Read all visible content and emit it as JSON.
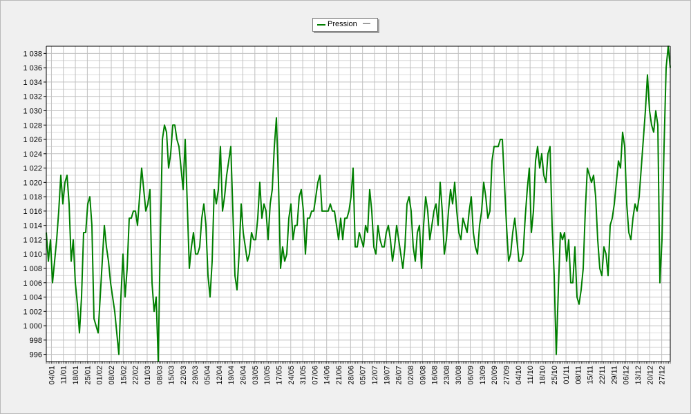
{
  "colors": {
    "series": "#007f00",
    "plot_bg": "#ffffff",
    "grid": "#c0c0c0",
    "page_bg": "#f0f0f0"
  },
  "chart_data": {
    "type": "line",
    "title": "",
    "xlabel": "",
    "ylabel": "",
    "ylim": [
      995,
      1039
    ],
    "ytick_labels": [
      "996",
      "998",
      "1 000",
      "1 002",
      "1 004",
      "1 006",
      "1 008",
      "1 010",
      "1 012",
      "1 014",
      "1 016",
      "1 018",
      "1 020",
      "1 022",
      "1 024",
      "1 026",
      "1 028",
      "1 030",
      "1 032",
      "1 034",
      "1 036",
      "1 038"
    ],
    "xtick_labels": [
      "04/01",
      "11/01",
      "18/01",
      "25/01",
      "01/02",
      "08/02",
      "15/02",
      "22/02",
      "01/03",
      "08/03",
      "15/03",
      "22/03",
      "29/03",
      "05/04",
      "12/04",
      "19/04",
      "26/04",
      "03/05",
      "10/05",
      "17/05",
      "24/05",
      "31/05",
      "07/06",
      "14/06",
      "21/06",
      "28/06",
      "05/07",
      "12/07",
      "19/07",
      "26/07",
      "02/08",
      "09/08",
      "16/08",
      "23/08",
      "30/08",
      "06/09",
      "13/09",
      "20/09",
      "27/09",
      "04/10",
      "11/10",
      "18/10",
      "25/10",
      "01/11",
      "08/11",
      "15/11",
      "22/11",
      "29/11",
      "06/12",
      "13/12",
      "20/12",
      "27/12"
    ],
    "legend": {
      "placement": "top-center"
    },
    "grid": true,
    "series": [
      {
        "name": "Pression",
        "x_start": "01/01",
        "x_end": "31/12",
        "values": [
          1013,
          1009,
          1012,
          1006,
          1009,
          1012,
          1016,
          1021,
          1017,
          1020,
          1021,
          1017,
          1009,
          1012,
          1006,
          1003,
          999,
          1004,
          1013,
          1013,
          1017,
          1018,
          1014,
          1001,
          1000,
          999,
          1004,
          1009,
          1014,
          1011,
          1009,
          1006,
          1004,
          1002,
          999,
          996,
          1004,
          1010,
          1004,
          1008,
          1015,
          1015,
          1016,
          1016,
          1014,
          1018,
          1022,
          1019,
          1016,
          1017,
          1019,
          1006,
          1002,
          1004,
          995,
          1012,
          1026,
          1028,
          1027,
          1022,
          1024,
          1028,
          1028,
          1026,
          1025,
          1022,
          1019,
          1026,
          1017,
          1008,
          1011,
          1013,
          1010,
          1010,
          1011,
          1015,
          1017,
          1014,
          1007,
          1004,
          1009,
          1019,
          1017,
          1019,
          1025,
          1016,
          1018,
          1021,
          1023,
          1025,
          1016,
          1007,
          1005,
          1010,
          1017,
          1013,
          1011,
          1009,
          1010,
          1013,
          1012,
          1012,
          1015,
          1020,
          1015,
          1017,
          1016,
          1012,
          1017,
          1019,
          1025,
          1029,
          1020,
          1008,
          1011,
          1009,
          1010,
          1015,
          1017,
          1012,
          1014,
          1014,
          1018,
          1019,
          1016,
          1010,
          1015,
          1015,
          1016,
          1016,
          1018,
          1020,
          1021,
          1016,
          1016,
          1016,
          1016,
          1017,
          1016,
          1016,
          1014,
          1012,
          1015,
          1012,
          1015,
          1015,
          1016,
          1018,
          1022,
          1011,
          1011,
          1013,
          1012,
          1011,
          1014,
          1013,
          1019,
          1016,
          1011,
          1010,
          1014,
          1012,
          1011,
          1011,
          1013,
          1014,
          1012,
          1009,
          1011,
          1014,
          1012,
          1010,
          1008,
          1011,
          1017,
          1018,
          1016,
          1011,
          1009,
          1013,
          1014,
          1008,
          1014,
          1018,
          1016,
          1012,
          1014,
          1016,
          1017,
          1014,
          1020,
          1016,
          1010,
          1012,
          1016,
          1019,
          1017,
          1020,
          1016,
          1013,
          1012,
          1015,
          1014,
          1013,
          1016,
          1018,
          1013,
          1011,
          1010,
          1014,
          1016,
          1020,
          1018,
          1015,
          1016,
          1023,
          1025,
          1025,
          1025,
          1026,
          1026,
          1020,
          1014,
          1009,
          1010,
          1013,
          1015,
          1012,
          1009,
          1009,
          1010,
          1015,
          1019,
          1022,
          1013,
          1016,
          1023,
          1025,
          1022,
          1024,
          1021,
          1020,
          1024,
          1025,
          1014,
          1007,
          996,
          1005,
          1013,
          1012,
          1013,
          1009,
          1012,
          1006,
          1006,
          1011,
          1004,
          1003,
          1005,
          1008,
          1016,
          1022,
          1021,
          1020,
          1021,
          1018,
          1012,
          1008,
          1007,
          1011,
          1010,
          1007,
          1014,
          1015,
          1017,
          1020,
          1023,
          1022,
          1027,
          1025,
          1017,
          1013,
          1012,
          1015,
          1017,
          1016,
          1018,
          1022,
          1026,
          1030,
          1035,
          1030,
          1028,
          1027,
          1030,
          1028,
          1006,
          1012,
          1025,
          1036,
          1039,
          1036
        ]
      }
    ]
  }
}
